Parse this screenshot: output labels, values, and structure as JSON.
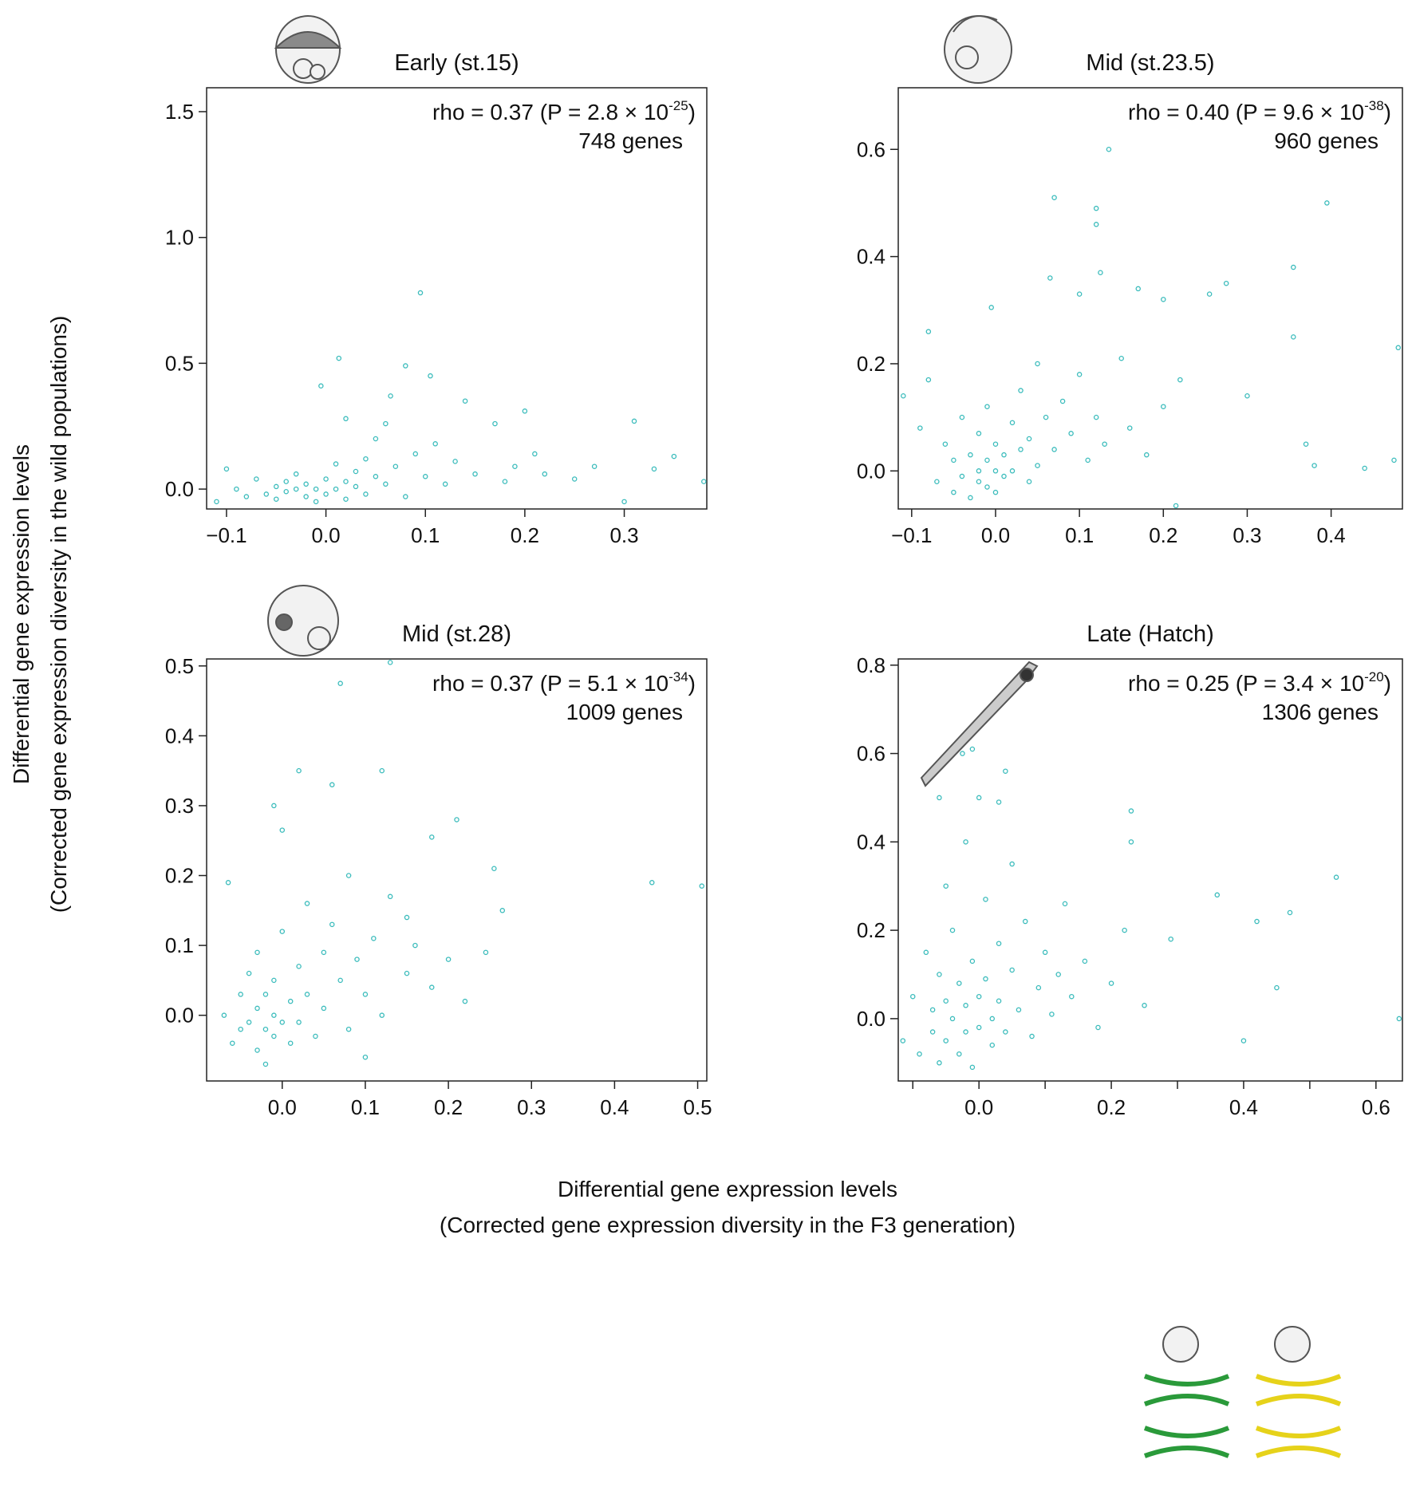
{
  "y_axis_title": [
    "Differential gene expression levels",
    "(Corrected gene expression diversity in the wild populations)"
  ],
  "x_axis_title": [
    "Differential gene expression levels",
    "(Corrected gene expression diversity in the F3 generation)"
  ],
  "chart_data": [
    {
      "type": "scatter",
      "title": "Early (st.15)",
      "annotation": {
        "text": "rho = 0.37 (P = 2.8 × 10",
        "superscript": "-25",
        "close": ")"
      },
      "genes_label": "748 genes",
      "color": "#3bbcbc",
      "xlim": [
        -0.12,
        0.383
      ],
      "ylim": [
        -0.079,
        1.595
      ],
      "xticks": [
        {
          "value": -0.1,
          "label": "−0.1"
        },
        {
          "value": 0,
          "label": "0.0"
        },
        0.1,
        0.2,
        0.3
      ],
      "yticks": [
        {
          "value": 0,
          "label": "0.0"
        },
        0.5,
        {
          "value": 1,
          "label": "1.0"
        },
        1.5
      ],
      "x": [
        -0.11,
        -0.1,
        -0.09,
        -0.08,
        -0.07,
        -0.06,
        -0.05,
        -0.05,
        -0.04,
        -0.04,
        -0.03,
        -0.03,
        -0.02,
        -0.02,
        -0.01,
        -0.01,
        0.0,
        0.0,
        0.01,
        0.01,
        0.02,
        0.02,
        0.03,
        0.03,
        0.04,
        0.04,
        0.05,
        0.05,
        0.06,
        0.06,
        0.07,
        0.08,
        0.09,
        0.1,
        0.11,
        0.12,
        0.13,
        0.15,
        0.17,
        0.18,
        0.19,
        0.21,
        0.22,
        0.25,
        0.095,
        0.013,
        -0.005,
        0.08,
        0.105,
        0.065,
        0.14,
        0.2,
        0.31,
        0.33,
        0.35,
        0.3,
        0.27,
        0.38,
        0.02
      ],
      "y": [
        -0.05,
        0.08,
        0.0,
        -0.03,
        0.04,
        -0.02,
        0.01,
        -0.04,
        0.03,
        -0.01,
        0.0,
        0.06,
        -0.03,
        0.02,
        0.0,
        -0.05,
        0.04,
        -0.02,
        0.1,
        0.0,
        0.03,
        -0.04,
        0.07,
        0.01,
        0.12,
        -0.02,
        0.05,
        0.2,
        0.02,
        0.26,
        0.09,
        -0.03,
        0.14,
        0.05,
        0.18,
        0.02,
        0.11,
        0.06,
        0.26,
        0.03,
        0.09,
        0.14,
        0.06,
        0.04,
        0.78,
        0.52,
        0.41,
        0.49,
        0.45,
        0.37,
        0.35,
        0.31,
        0.27,
        0.08,
        0.13,
        -0.05,
        0.09,
        0.03,
        0.28
      ]
    },
    {
      "type": "scatter",
      "title": "Mid (st.23.5)",
      "annotation": {
        "text": "rho = 0.40 (P = 9.6 × 10",
        "superscript": "-38",
        "close": ")"
      },
      "genes_label": "960 genes",
      "color": "#3bbcbc",
      "xlim": [
        -0.116,
        0.485
      ],
      "ylim": [
        -0.071,
        0.715
      ],
      "xticks": [
        {
          "value": -0.1,
          "label": "−0.1"
        },
        {
          "value": 0,
          "label": "0.0"
        },
        0.1,
        0.2,
        0.3,
        0.4
      ],
      "yticks": [
        {
          "value": 0,
          "label": "0.0"
        },
        0.2,
        0.4,
        0.6
      ],
      "x": [
        -0.07,
        -0.06,
        -0.05,
        -0.05,
        -0.04,
        -0.04,
        -0.03,
        -0.03,
        -0.02,
        -0.02,
        -0.02,
        -0.01,
        -0.01,
        -0.01,
        0.0,
        0.0,
        0.0,
        0.01,
        0.01,
        0.02,
        0.02,
        0.03,
        0.03,
        0.04,
        0.04,
        0.05,
        0.05,
        0.06,
        0.07,
        0.08,
        0.09,
        0.1,
        0.11,
        0.12,
        0.13,
        0.15,
        0.16,
        0.18,
        0.2,
        0.22,
        -0.09,
        -0.08,
        0.135,
        0.07,
        0.395,
        0.12,
        0.12,
        0.355,
        0.125,
        0.065,
        0.275,
        0.17,
        -0.005,
        0.1,
        0.255,
        0.2,
        0.355,
        0.48,
        0.3,
        0.37,
        0.44,
        0.475,
        0.38,
        0.215,
        -0.11,
        -0.08
      ],
      "y": [
        -0.02,
        0.05,
        -0.04,
        0.02,
        0.1,
        -0.01,
        0.03,
        -0.05,
        0.0,
        0.07,
        -0.02,
        0.02,
        -0.03,
        0.12,
        0.0,
        0.05,
        -0.04,
        0.03,
        -0.01,
        0.09,
        0.0,
        0.15,
        0.04,
        -0.02,
        0.06,
        0.2,
        0.01,
        0.1,
        0.04,
        0.13,
        0.07,
        0.18,
        0.02,
        0.1,
        0.05,
        0.21,
        0.08,
        0.03,
        0.12,
        0.17,
        0.08,
        0.17,
        0.6,
        0.51,
        0.5,
        0.49,
        0.46,
        0.38,
        0.37,
        0.36,
        0.35,
        0.34,
        0.305,
        0.33,
        0.33,
        0.32,
        0.25,
        0.23,
        0.14,
        0.05,
        0.005,
        0.02,
        0.01,
        -0.065,
        0.14,
        0.26
      ]
    },
    {
      "type": "scatter",
      "title": "Mid (st.28)",
      "annotation": {
        "text": "rho = 0.37 (P = 5.1 × 10",
        "superscript": "-34",
        "close": ")"
      },
      "genes_label": "1009 genes",
      "color": "#3bbcbc",
      "xlim": [
        -0.091,
        0.511
      ],
      "ylim": [
        -0.094,
        0.51
      ],
      "xticks": [
        {
          "value": 0,
          "label": "0.0"
        },
        0.1,
        0.2,
        0.3,
        0.4,
        0.5
      ],
      "yticks": [
        {
          "value": 0,
          "label": "0.0"
        },
        0.1,
        0.2,
        0.3,
        0.4,
        0.5
      ],
      "x": [
        -0.07,
        -0.06,
        -0.05,
        -0.05,
        -0.04,
        -0.04,
        -0.03,
        -0.03,
        -0.03,
        -0.02,
        -0.02,
        -0.02,
        -0.01,
        -0.01,
        -0.01,
        0.0,
        0.0,
        0.01,
        0.01,
        0.02,
        0.02,
        0.03,
        0.03,
        0.04,
        0.05,
        0.05,
        0.06,
        0.07,
        0.08,
        0.08,
        0.09,
        0.1,
        0.11,
        0.12,
        0.13,
        0.15,
        0.16,
        0.18,
        0.2,
        0.22,
        0.15,
        0.1,
        0.02,
        0.12,
        0.06,
        0.21,
        -0.01,
        0.0,
        0.18,
        0.255,
        0.445,
        0.505,
        0.265,
        0.245,
        -0.065,
        0.07,
        0.13
      ],
      "y": [
        0.0,
        -0.04,
        0.03,
        -0.02,
        0.06,
        -0.01,
        0.01,
        -0.05,
        0.09,
        -0.02,
        0.03,
        -0.07,
        0.0,
        -0.03,
        0.05,
        -0.01,
        0.12,
        0.02,
        -0.04,
        0.07,
        -0.01,
        0.16,
        0.03,
        -0.03,
        0.09,
        0.01,
        0.13,
        0.05,
        -0.02,
        0.2,
        0.08,
        0.03,
        0.11,
        0.0,
        0.17,
        0.06,
        0.1,
        0.04,
        0.08,
        0.02,
        0.14,
        -0.06,
        0.35,
        0.35,
        0.33,
        0.28,
        0.3,
        0.265,
        0.255,
        0.21,
        0.19,
        0.185,
        0.15,
        0.09,
        0.19,
        0.475,
        0.505
      ]
    },
    {
      "type": "scatter",
      "title": "Late (Hatch)",
      "annotation": {
        "text": "rho = 0.25 (P = 3.4 × 10",
        "superscript": "-20",
        "close": ")"
      },
      "genes_label": "1306 genes",
      "color": "#3bbcbc",
      "xlim": [
        -0.122,
        0.64
      ],
      "ylim": [
        -0.141,
        0.814
      ],
      "xticks": [
        {
          "value": 0,
          "label": "0.0"
        },
        0.2,
        0.4,
        0.6
      ],
      "xminor_ticks": [
        -0.1,
        0.1,
        0.3,
        0.5
      ],
      "yticks": [
        {
          "value": 0,
          "label": "0.0"
        },
        0.2,
        0.4,
        0.6,
        0.8
      ],
      "x": [
        -0.1,
        -0.09,
        -0.08,
        -0.07,
        -0.07,
        -0.06,
        -0.06,
        -0.05,
        -0.05,
        -0.04,
        -0.04,
        -0.03,
        -0.03,
        -0.02,
        -0.02,
        -0.01,
        -0.01,
        0.0,
        0.0,
        0.01,
        0.01,
        0.02,
        0.02,
        0.03,
        0.03,
        0.04,
        0.05,
        0.05,
        0.06,
        0.07,
        0.08,
        0.09,
        0.1,
        0.11,
        0.12,
        0.13,
        0.14,
        0.16,
        0.18,
        0.2,
        0.22,
        0.25,
        -0.05,
        -0.02,
        -0.025,
        -0.01,
        0.04,
        -0.06,
        0.0,
        0.03,
        0.23,
        0.23,
        0.54,
        0.47,
        0.36,
        0.42,
        0.29,
        0.45,
        0.4,
        0.635,
        -0.115
      ],
      "y": [
        0.05,
        -0.08,
        0.15,
        -0.03,
        0.02,
        0.1,
        -0.1,
        0.04,
        -0.05,
        0.2,
        0.0,
        -0.08,
        0.08,
        0.03,
        -0.03,
        0.13,
        -0.11,
        0.05,
        -0.02,
        0.27,
        0.09,
        0.0,
        -0.06,
        0.17,
        0.04,
        -0.03,
        0.11,
        0.35,
        0.02,
        0.22,
        -0.04,
        0.07,
        0.15,
        0.01,
        0.1,
        0.26,
        0.05,
        0.13,
        -0.02,
        0.08,
        0.2,
        0.03,
        0.3,
        0.4,
        0.6,
        0.61,
        0.56,
        0.5,
        0.5,
        0.49,
        0.47,
        0.4,
        0.32,
        0.24,
        0.28,
        0.22,
        0.18,
        0.07,
        -0.05,
        0.0,
        -0.05
      ]
    }
  ]
}
